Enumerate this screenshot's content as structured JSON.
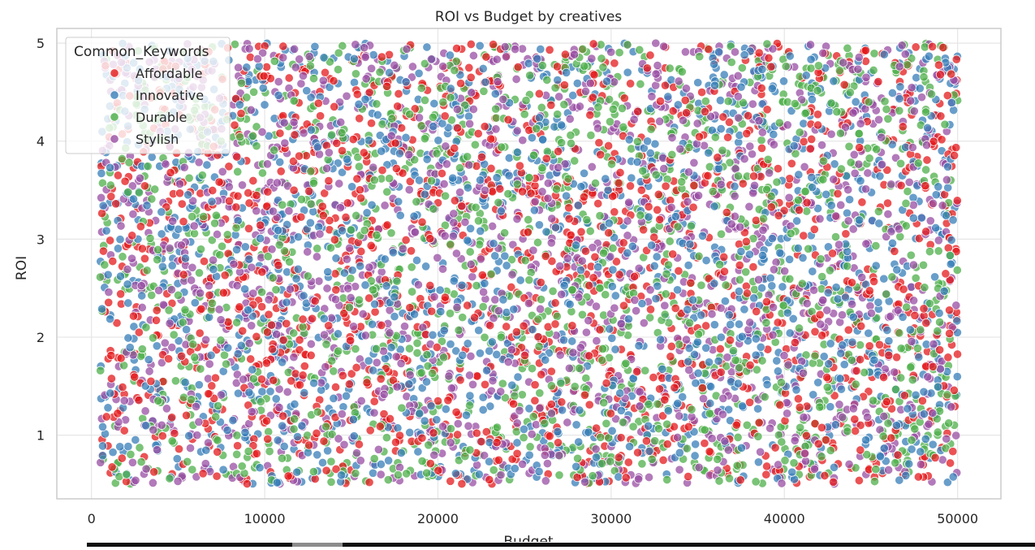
{
  "chart_data": {
    "type": "scatter",
    "title": "ROI vs Budget by creatives",
    "xlabel": "Budget",
    "ylabel": "ROI",
    "xlim": [
      -2000,
      52500
    ],
    "ylim": [
      0.35,
      5.15
    ],
    "xticks": [
      0,
      10000,
      20000,
      30000,
      40000,
      50000
    ],
    "yticks": [
      1,
      2,
      3,
      4,
      5
    ],
    "grid": true,
    "point_range": {
      "budget": [
        500,
        50000
      ],
      "roi": [
        0.5,
        5.0
      ]
    },
    "points_per_series": 1500,
    "legend": {
      "title": "Common_Keywords",
      "placement": "top-left",
      "entries": [
        "Affordable",
        "Innovative",
        "Durable",
        "Stylish"
      ]
    },
    "series": [
      {
        "name": "Affordable",
        "color": "#e41a1c"
      },
      {
        "name": "Innovative",
        "color": "#377eb8"
      },
      {
        "name": "Durable",
        "color": "#4daf4a"
      },
      {
        "name": "Stylish",
        "color": "#984ea3"
      }
    ]
  }
}
